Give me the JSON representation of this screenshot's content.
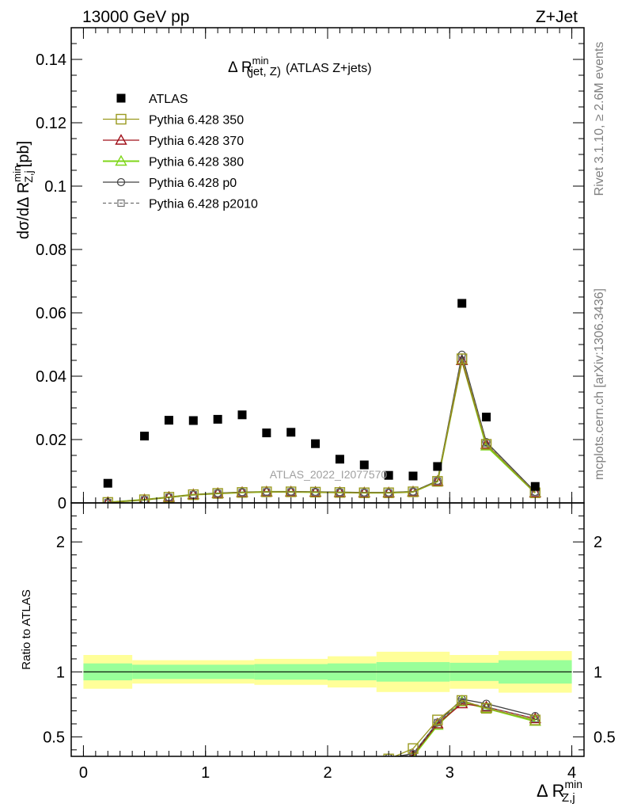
{
  "header": {
    "left": "13000 GeV pp",
    "right": "Z+Jet"
  },
  "side_labels": {
    "rivet": "Rivet 3.1.10, ≥ 2.6M events",
    "mcplots": "mcplots.cern.ch [arXiv:1306.3436]"
  },
  "watermark": "ATLAS_2022_I2077570",
  "colors": {
    "data": "#000000",
    "p350": "#9a9a1f",
    "p370": "#a0101a",
    "p380": "#7fd61a",
    "p0": "#404040",
    "p2010": "#707070",
    "band_inner": "#99ff99",
    "band_outer": "#ffff99"
  },
  "chart_data": [
    {
      "id": "main",
      "type": "scatter",
      "title": "Δ R",
      "title_sup": "min",
      "title_sub": "(jet, Z)",
      "title_suffix": "(ATLAS Z+jets)",
      "ylabel_pre": "dσ/dΔ R",
      "ylabel_sup": "min",
      "ylabel_sub": "Z,j",
      "ylabel_post": "[pb]",
      "xlim": [
        -0.1,
        4.1
      ],
      "ylim": [
        0,
        0.15
      ],
      "yticks": [
        {
          "v": 0,
          "label": "0"
        },
        {
          "v": 0.02,
          "label": "0.02"
        },
        {
          "v": 0.04,
          "label": "0.04"
        },
        {
          "v": 0.06,
          "label": "0.06"
        },
        {
          "v": 0.08,
          "label": "0.08"
        },
        {
          "v": 0.1,
          "label": "0.1"
        },
        {
          "v": 0.12,
          "label": "0.12"
        },
        {
          "v": 0.14,
          "label": "0.14"
        }
      ],
      "legend_position": "top-left",
      "legend": [
        {
          "name": "ATLAS",
          "key": "data",
          "marker": "filled-square",
          "line": "none"
        },
        {
          "name": "Pythia 6.428 350",
          "key": "p350",
          "marker": "open-square",
          "line": "solid"
        },
        {
          "name": "Pythia 6.428 370",
          "key": "p370",
          "marker": "open-triangle",
          "line": "solid"
        },
        {
          "name": "Pythia 6.428 380",
          "key": "p380",
          "marker": "open-triangle",
          "line": "solid"
        },
        {
          "name": "Pythia 6.428 p0",
          "key": "p0",
          "marker": "open-circle",
          "line": "solid"
        },
        {
          "name": "Pythia 6.428 p2010",
          "key": "p2010",
          "marker": "open-small-square",
          "line": "dashed"
        }
      ],
      "x": [
        0.2,
        0.5,
        0.7,
        0.9,
        1.1,
        1.3,
        1.5,
        1.7,
        1.9,
        2.1,
        2.3,
        2.5,
        2.7,
        2.9,
        3.1,
        3.3,
        3.7
      ],
      "series": [
        {
          "key": "data",
          "values": [
            0.0062,
            0.0211,
            0.0261,
            0.026,
            0.0264,
            0.0278,
            0.0221,
            0.0223,
            0.0187,
            0.0138,
            0.012,
            0.0087,
            0.0085,
            0.0115,
            0.063,
            0.0271,
            0.0052
          ]
        },
        {
          "key": "p350",
          "values": [
            0.00015,
            0.001,
            0.0018,
            0.0026,
            0.003,
            0.0033,
            0.0035,
            0.0035,
            0.0034,
            0.0033,
            0.0032,
            0.0032,
            0.0035,
            0.0068,
            0.0455,
            0.0185,
            0.0032
          ]
        },
        {
          "key": "p370",
          "values": [
            0.00015,
            0.001,
            0.0018,
            0.0026,
            0.003,
            0.0033,
            0.0035,
            0.0035,
            0.0034,
            0.0033,
            0.0032,
            0.0032,
            0.0035,
            0.0068,
            0.045,
            0.0185,
            0.0032
          ]
        },
        {
          "key": "p380",
          "values": [
            0.00015,
            0.001,
            0.0018,
            0.0026,
            0.003,
            0.0033,
            0.0035,
            0.0035,
            0.0034,
            0.0033,
            0.0032,
            0.0032,
            0.0035,
            0.0068,
            0.045,
            0.018,
            0.0032
          ]
        },
        {
          "key": "p0",
          "values": [
            0.00015,
            0.001,
            0.0018,
            0.0026,
            0.0031,
            0.0034,
            0.0035,
            0.0036,
            0.0035,
            0.0034,
            0.0033,
            0.0033,
            0.0036,
            0.007,
            0.0468,
            0.0192,
            0.0035
          ]
        },
        {
          "key": "p2010",
          "values": [
            0.00015,
            0.001,
            0.0018,
            0.0026,
            0.003,
            0.0033,
            0.0035,
            0.0035,
            0.0034,
            0.0033,
            0.0032,
            0.0032,
            0.0035,
            0.0069,
            0.046,
            0.0188,
            0.0033
          ]
        }
      ]
    },
    {
      "id": "ratio",
      "type": "line",
      "ylabel": "Ratio to ATLAS",
      "xlabel_pre": "Δ R",
      "xlabel_sup": "min",
      "xlabel_sub": "Z,j",
      "xlim": [
        -0.1,
        4.1
      ],
      "ylim": [
        0.35,
        2.3
      ],
      "yticks": [
        {
          "v": 0.5,
          "label": "0.5"
        },
        {
          "v": 1,
          "label": "1"
        },
        {
          "v": 2,
          "label": "2"
        }
      ],
      "xticks": [
        {
          "v": 0,
          "label": "0"
        },
        {
          "v": 1,
          "label": "1"
        },
        {
          "v": 2,
          "label": "2"
        },
        {
          "v": 3,
          "label": "3"
        },
        {
          "v": 4,
          "label": "4"
        }
      ],
      "bands": [
        {
          "x0": 0.0,
          "x1": 0.4,
          "inner": [
            0.935,
            1.065
          ],
          "outer": [
            0.87,
            1.13
          ]
        },
        {
          "x0": 0.4,
          "x1": 1.4,
          "inner": [
            0.945,
            1.055
          ],
          "outer": [
            0.91,
            1.09
          ]
        },
        {
          "x0": 1.4,
          "x1": 2.0,
          "inner": [
            0.94,
            1.06
          ],
          "outer": [
            0.9,
            1.1
          ]
        },
        {
          "x0": 2.0,
          "x1": 2.4,
          "inner": [
            0.935,
            1.065
          ],
          "outer": [
            0.88,
            1.12
          ]
        },
        {
          "x0": 2.4,
          "x1": 3.0,
          "inner": [
            0.925,
            1.075
          ],
          "outer": [
            0.845,
            1.155
          ]
        },
        {
          "x0": 3.0,
          "x1": 3.4,
          "inner": [
            0.93,
            1.07
          ],
          "outer": [
            0.87,
            1.13
          ]
        },
        {
          "x0": 3.4,
          "x1": 4.0,
          "inner": [
            0.91,
            1.09
          ],
          "outer": [
            0.84,
            1.16
          ]
        }
      ],
      "x": [
        2.5,
        2.7,
        2.9,
        3.1,
        3.3,
        3.7
      ],
      "series": [
        {
          "key": "p350",
          "values": [
            0.33,
            0.41,
            0.63,
            0.78,
            0.72,
            0.63
          ]
        },
        {
          "key": "p370",
          "values": [
            0.3,
            0.36,
            0.6,
            0.755,
            0.73,
            0.64
          ]
        },
        {
          "key": "p380",
          "values": [
            0.3,
            0.35,
            0.59,
            0.77,
            0.72,
            0.62
          ]
        },
        {
          "key": "p0",
          "values": [
            0.34,
            0.37,
            0.61,
            0.79,
            0.755,
            0.66
          ]
        },
        {
          "key": "p2010",
          "values": [
            0.32,
            0.37,
            0.61,
            0.77,
            0.73,
            0.64
          ]
        }
      ]
    }
  ]
}
